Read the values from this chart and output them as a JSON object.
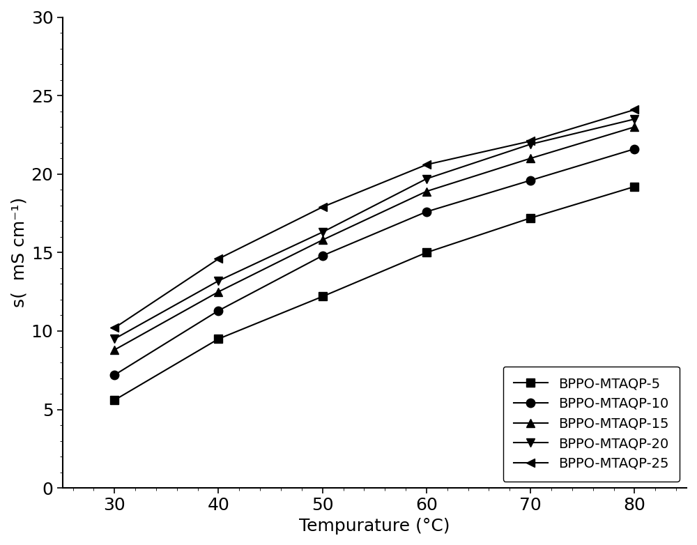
{
  "x": [
    30,
    40,
    50,
    60,
    70,
    80
  ],
  "series": [
    {
      "label": "BPPO-MTAQP-5",
      "y": [
        5.6,
        9.5,
        12.2,
        15.0,
        17.2,
        19.2
      ],
      "marker": "s",
      "color": "#000000"
    },
    {
      "label": "BPPO-MTAQP-10",
      "y": [
        7.2,
        11.3,
        14.8,
        17.6,
        19.6,
        21.6
      ],
      "marker": "o",
      "color": "#000000"
    },
    {
      "label": "BPPO-MTAQP-15",
      "y": [
        8.8,
        12.5,
        15.8,
        18.9,
        21.0,
        23.0
      ],
      "marker": "^",
      "color": "#000000"
    },
    {
      "label": "BPPO-MTAQP-20",
      "y": [
        9.5,
        13.2,
        16.3,
        19.7,
        21.9,
        23.5
      ],
      "marker": "v",
      "color": "#000000"
    },
    {
      "label": "BPPO-MTAQP-25",
      "y": [
        10.2,
        14.6,
        17.9,
        20.6,
        22.1,
        24.1
      ],
      "marker": "<",
      "color": "#000000"
    }
  ],
  "xlabel": "Tempurature (°C)",
  "ylabel": "s(  mS cm⁻¹)",
  "xlim": [
    25,
    85
  ],
  "ylim": [
    0,
    30
  ],
  "xticks": [
    30,
    40,
    50,
    60,
    70,
    80
  ],
  "yticks": [
    0,
    5,
    10,
    15,
    20,
    25,
    30
  ],
  "legend_loc": "lower right",
  "marker_size": 9,
  "line_width": 1.5,
  "font_size": 18,
  "tick_font_size": 18,
  "legend_font_size": 14,
  "figsize": [
    10.0,
    7.82
  ],
  "dpi": 100
}
